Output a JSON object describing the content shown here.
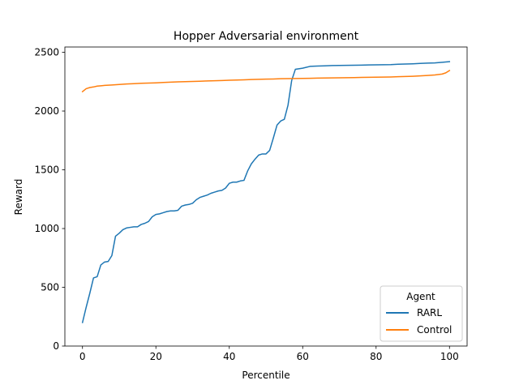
{
  "chart_data": {
    "type": "line",
    "title": "Hopper Adversarial environment",
    "xlabel": "Percentile",
    "ylabel": "Reward",
    "xlim": [
      -4.8,
      104.8
    ],
    "ylim": [
      0,
      2545
    ],
    "xticks": [
      0,
      20,
      40,
      60,
      80,
      100
    ],
    "yticks": [
      0,
      500,
      1000,
      1500,
      2000,
      2500
    ],
    "grid": false,
    "legend": {
      "title": "Agent",
      "placement": "lower-right"
    },
    "series": [
      {
        "name": "RARL",
        "color": "#1f77b4",
        "x": [
          0,
          1,
          2,
          3,
          4,
          5,
          6,
          7,
          8,
          9,
          10,
          11,
          12,
          13,
          14,
          15,
          16,
          17,
          18,
          19,
          20,
          21,
          22,
          23,
          24,
          25,
          26,
          27,
          28,
          29,
          30,
          31,
          32,
          33,
          34,
          35,
          36,
          37,
          38,
          39,
          40,
          41,
          42,
          43,
          44,
          45,
          46,
          47,
          48,
          49,
          50,
          51,
          52,
          53,
          54,
          55,
          56,
          57,
          58,
          60,
          62,
          64,
          66,
          68,
          70,
          72,
          74,
          76,
          78,
          80,
          82,
          84,
          86,
          88,
          90,
          92,
          94,
          96,
          98,
          100
        ],
        "y": [
          200,
          330,
          450,
          580,
          590,
          690,
          715,
          720,
          770,
          935,
          960,
          990,
          1005,
          1010,
          1015,
          1015,
          1035,
          1045,
          1060,
          1100,
          1120,
          1125,
          1135,
          1145,
          1150,
          1150,
          1155,
          1190,
          1200,
          1205,
          1215,
          1245,
          1265,
          1275,
          1285,
          1300,
          1310,
          1320,
          1325,
          1345,
          1385,
          1395,
          1395,
          1405,
          1410,
          1490,
          1550,
          1590,
          1625,
          1635,
          1635,
          1665,
          1770,
          1880,
          1915,
          1930,
          2050,
          2260,
          2355,
          2365,
          2380,
          2383,
          2385,
          2387,
          2388,
          2389,
          2390,
          2391,
          2392,
          2393,
          2394,
          2395,
          2398,
          2400,
          2402,
          2405,
          2408,
          2410,
          2415,
          2420
        ]
      },
      {
        "name": "Control",
        "color": "#ff7f0e",
        "x": [
          0,
          1,
          2,
          3,
          4,
          5,
          6,
          8,
          10,
          12,
          14,
          16,
          18,
          20,
          22,
          24,
          26,
          28,
          30,
          32,
          34,
          36,
          38,
          40,
          42,
          44,
          46,
          48,
          50,
          52,
          54,
          56,
          58,
          60,
          62,
          64,
          66,
          68,
          70,
          72,
          74,
          76,
          78,
          80,
          82,
          84,
          86,
          88,
          90,
          92,
          94,
          96,
          98,
          99,
          100
        ],
        "y": [
          2165,
          2190,
          2200,
          2205,
          2212,
          2215,
          2218,
          2222,
          2226,
          2230,
          2233,
          2236,
          2238,
          2240,
          2243,
          2246,
          2248,
          2250,
          2252,
          2254,
          2256,
          2258,
          2260,
          2262,
          2264,
          2266,
          2268,
          2270,
          2272,
          2273,
          2275,
          2276,
          2277,
          2278,
          2279,
          2280,
          2281,
          2282,
          2283,
          2284,
          2285,
          2286,
          2287,
          2288,
          2289,
          2290,
          2292,
          2294,
          2296,
          2299,
          2303,
          2307,
          2315,
          2325,
          2345
        ]
      }
    ]
  }
}
